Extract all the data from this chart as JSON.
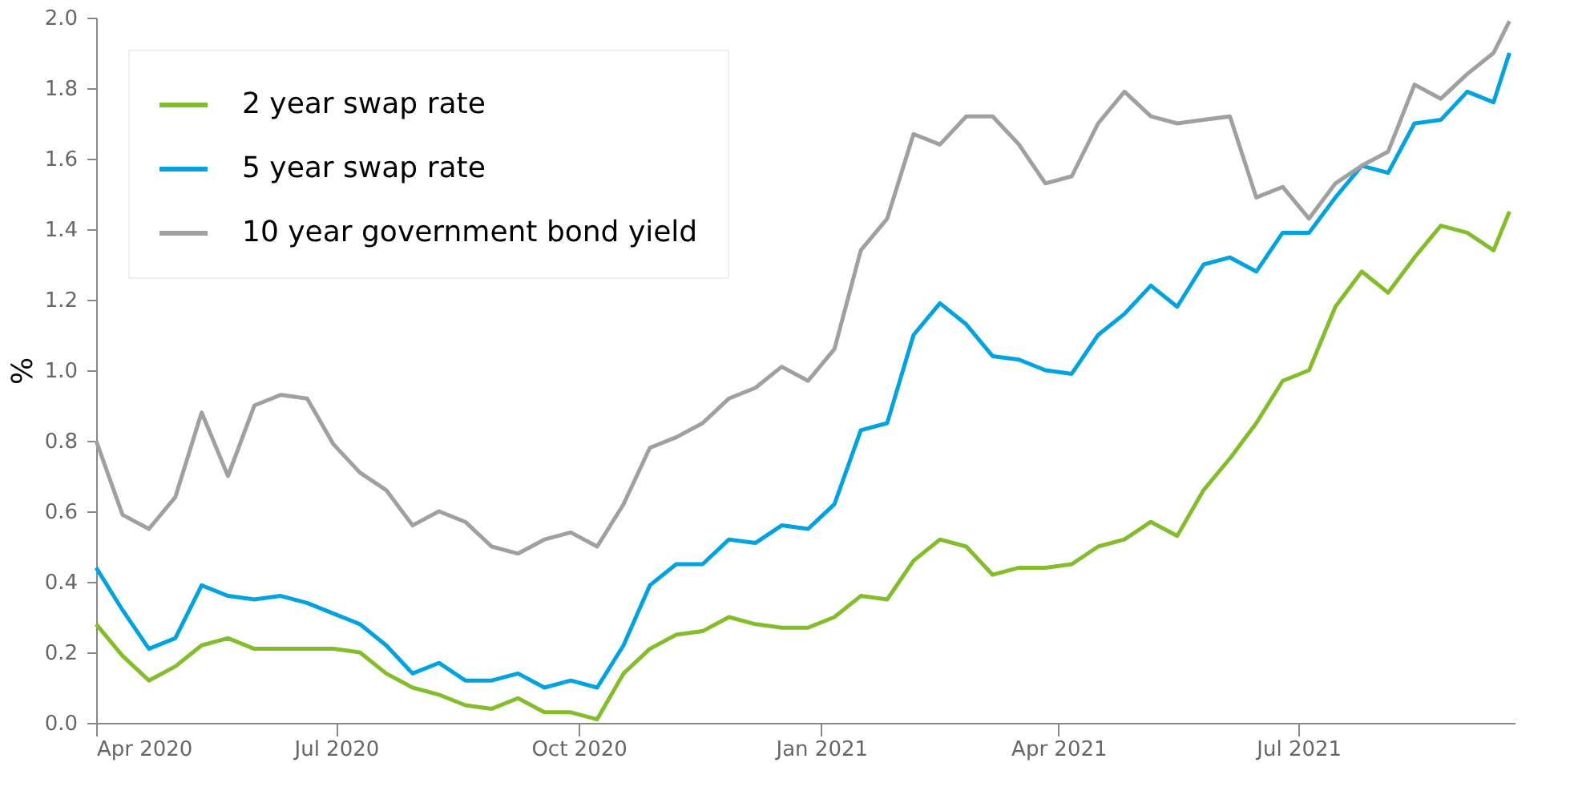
{
  "chart_data": {
    "type": "line",
    "ylabel": "%",
    "legend": "top left",
    "x": [
      "2020-04-01",
      "2020-04-11",
      "2020-04-21",
      "2020-05-01",
      "2020-05-11",
      "2020-05-21",
      "2020-05-31",
      "2020-06-10",
      "2020-06-20",
      "2020-06-30",
      "2020-07-10",
      "2020-07-20",
      "2020-07-30",
      "2020-08-09",
      "2020-08-19",
      "2020-08-29",
      "2020-09-08",
      "2020-09-18",
      "2020-09-28",
      "2020-10-08",
      "2020-10-18",
      "2020-10-28",
      "2020-11-07",
      "2020-11-17",
      "2020-11-27",
      "2020-12-07",
      "2020-12-17",
      "2020-12-27",
      "2021-01-06",
      "2021-01-16",
      "2021-01-26",
      "2021-02-05",
      "2021-02-15",
      "2021-02-25",
      "2021-03-07",
      "2021-03-17",
      "2021-03-27",
      "2021-04-06",
      "2021-04-16",
      "2021-04-26",
      "2021-05-06",
      "2021-05-16",
      "2021-05-26",
      "2021-06-05",
      "2021-06-15",
      "2021-06-25",
      "2021-07-05",
      "2021-07-15",
      "2021-07-25",
      "2021-08-04",
      "2021-08-14",
      "2021-08-24",
      "2021-09-03",
      "2021-09-13",
      "2021-09-19"
    ],
    "series": [
      {
        "name": "2 year swap rate",
        "color": "#84bd2c",
        "values": [
          0.28,
          0.19,
          0.12,
          0.16,
          0.22,
          0.24,
          0.21,
          0.21,
          0.21,
          0.21,
          0.2,
          0.14,
          0.1,
          0.08,
          0.05,
          0.04,
          0.07,
          0.03,
          0.03,
          0.01,
          0.14,
          0.21,
          0.25,
          0.26,
          0.3,
          0.28,
          0.27,
          0.27,
          0.3,
          0.36,
          0.35,
          0.46,
          0.52,
          0.5,
          0.42,
          0.44,
          0.44,
          0.45,
          0.5,
          0.52,
          0.57,
          0.53,
          0.66,
          0.75,
          0.85,
          0.97,
          1.0,
          1.18,
          1.28,
          1.22,
          1.32,
          1.41,
          1.39,
          1.34,
          1.45
        ]
      },
      {
        "name": "5 year swap rate",
        "color": "#00a3e0",
        "values": [
          0.44,
          0.32,
          0.21,
          0.24,
          0.39,
          0.36,
          0.35,
          0.36,
          0.34,
          0.31,
          0.28,
          0.22,
          0.14,
          0.17,
          0.12,
          0.12,
          0.14,
          0.1,
          0.12,
          0.1,
          0.22,
          0.39,
          0.45,
          0.45,
          0.52,
          0.51,
          0.56,
          0.55,
          0.62,
          0.83,
          0.85,
          1.1,
          1.19,
          1.13,
          1.04,
          1.03,
          1.0,
          0.99,
          1.1,
          1.16,
          1.24,
          1.18,
          1.3,
          1.32,
          1.28,
          1.39,
          1.39,
          1.49,
          1.58,
          1.56,
          1.7,
          1.71,
          1.79,
          1.76,
          1.9
        ]
      },
      {
        "name": "10 year government bond yield",
        "color": "#a0a0a0",
        "values": [
          0.8,
          0.59,
          0.55,
          0.64,
          0.88,
          0.7,
          0.9,
          0.93,
          0.92,
          0.79,
          0.71,
          0.66,
          0.56,
          0.6,
          0.57,
          0.5,
          0.48,
          0.52,
          0.54,
          0.5,
          0.62,
          0.78,
          0.81,
          0.85,
          0.92,
          0.95,
          1.01,
          0.97,
          1.06,
          1.34,
          1.43,
          1.67,
          1.64,
          1.72,
          1.72,
          1.64,
          1.53,
          1.55,
          1.7,
          1.79,
          1.72,
          1.7,
          1.71,
          1.72,
          1.49,
          1.52,
          1.43,
          1.53,
          1.58,
          1.62,
          1.81,
          1.77,
          1.84,
          1.9,
          1.99
        ]
      }
    ],
    "xlim": [
      "2020-04-01",
      "2021-09-21"
    ],
    "xticks": [
      {
        "value": "2020-04-01",
        "label": "Apr 2020"
      },
      {
        "value": "2020-07-01",
        "label": "Jul 2020"
      },
      {
        "value": "2020-10-01",
        "label": "Oct 2020"
      },
      {
        "value": "2021-01-01",
        "label": "Jan 2021"
      },
      {
        "value": "2021-04-01",
        "label": "Apr 2021"
      },
      {
        "value": "2021-07-01",
        "label": "Jul 2021"
      }
    ],
    "ylim": [
      0,
      2.0
    ],
    "yticks": [
      {
        "value": 0,
        "label": "0.0"
      },
      {
        "value": 0.2,
        "label": "0.2"
      },
      {
        "value": 0.4,
        "label": "0.4"
      },
      {
        "value": 0.6,
        "label": "0.6"
      },
      {
        "value": 0.8,
        "label": "0.8"
      },
      {
        "value": 1.0,
        "label": "1.0"
      },
      {
        "value": 1.2,
        "label": "1.2"
      },
      {
        "value": 1.4,
        "label": "1.4"
      },
      {
        "value": 1.6,
        "label": "1.6"
      },
      {
        "value": 1.8,
        "label": "1.8"
      },
      {
        "value": 2.0,
        "label": "2.0"
      }
    ]
  }
}
